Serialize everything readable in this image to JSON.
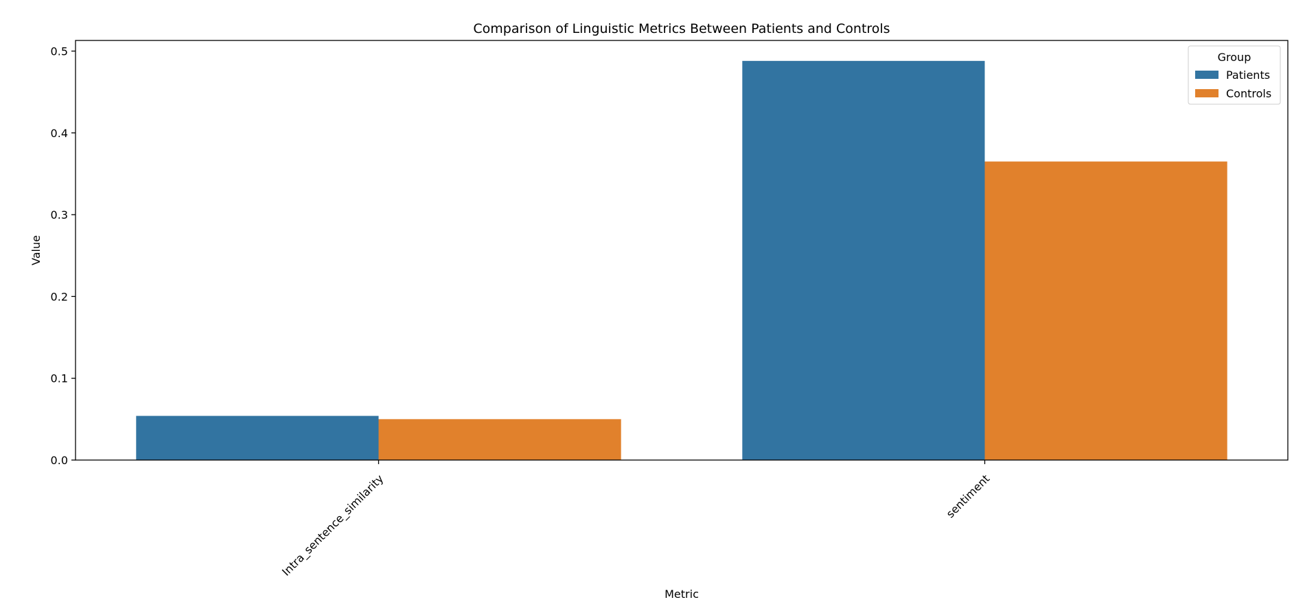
{
  "chart_data": {
    "type": "bar",
    "title": "Comparison of Linguistic Metrics Between Patients and Controls",
    "xlabel": "Metric",
    "ylabel": "Value",
    "categories": [
      "Intra_sentence_similarity",
      "sentiment"
    ],
    "series": [
      {
        "name": "Patients",
        "values": [
          0.054,
          0.488
        ],
        "color": "#3274a1"
      },
      {
        "name": "Controls",
        "values": [
          0.05,
          0.365
        ],
        "color": "#e1812c"
      }
    ],
    "ylim": [
      0,
      0.513
    ],
    "yticks": [
      0.0,
      0.1,
      0.2,
      0.3,
      0.4,
      0.5
    ],
    "legend": {
      "title": "Group",
      "placement": "top-right"
    },
    "grid": false
  }
}
